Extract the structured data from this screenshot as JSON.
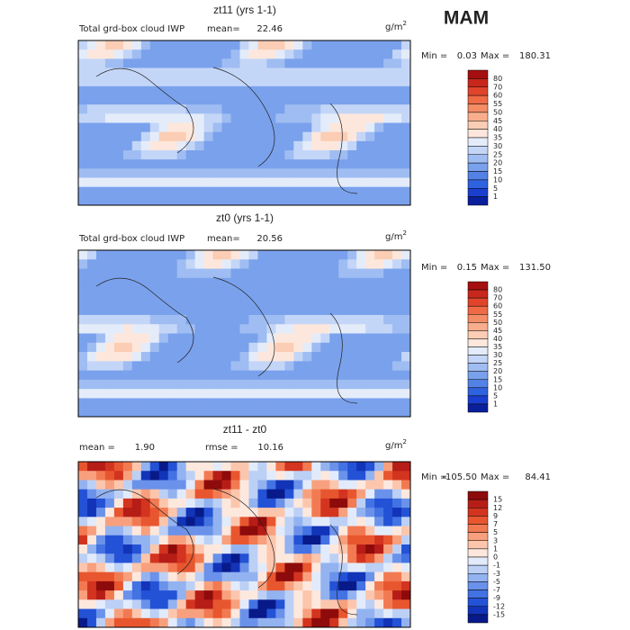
{
  "season": "MAM",
  "panels": [
    {
      "title": "zt11 (yrs 1-1)",
      "left_label": "Total grd-box cloud IWP",
      "stat1_label": "mean=",
      "stat1_value": "22.46",
      "units": "g/m",
      "units_sup": "2",
      "min_label": "Min =",
      "min": "0.03",
      "max_label": "Max =",
      "max": "180.31",
      "colorbar": {
        "labels": [
          80,
          70,
          60,
          55,
          50,
          45,
          40,
          35,
          30,
          25,
          20,
          15,
          10,
          5,
          1
        ],
        "colors": [
          "#a50f0f",
          "#c8281c",
          "#e0452c",
          "#ef6a45",
          "#f48c66",
          "#f8ae8c",
          "#fbcdb4",
          "#fde7dc",
          "#e4ecfa",
          "#c4d6f7",
          "#9fbdf2",
          "#7aa1ec",
          "#5382e6",
          "#2f62df",
          "#1a3fcf",
          "#0a1f9c"
        ]
      }
    },
    {
      "title": "zt0 (yrs 1-1)",
      "left_label": "Total grd-box cloud IWP",
      "stat1_label": "mean=",
      "stat1_value": "20.56",
      "units": "g/m",
      "units_sup": "2",
      "min_label": "Min =",
      "min": "0.15",
      "max_label": "Max =",
      "max": "131.50",
      "colorbar": {
        "labels": [
          80,
          70,
          60,
          55,
          50,
          45,
          40,
          35,
          30,
          25,
          20,
          15,
          10,
          5,
          1
        ],
        "colors": [
          "#a50f0f",
          "#c8281c",
          "#e0452c",
          "#ef6a45",
          "#f48c66",
          "#f8ae8c",
          "#fbcdb4",
          "#fde7dc",
          "#e4ecfa",
          "#c4d6f7",
          "#9fbdf2",
          "#7aa1ec",
          "#5382e6",
          "#2f62df",
          "#1a3fcf",
          "#0a1f9c"
        ]
      }
    },
    {
      "title": "zt11 - zt0",
      "stat1_label": "mean =",
      "stat1_value": "1.90",
      "stat2_label": "rmse =",
      "stat2_value": "10.16",
      "units": "g/m",
      "units_sup": "2",
      "min_label": "Min =",
      "min": "-105.50",
      "max_label": "Max =",
      "max": "84.41",
      "colorbar": {
        "labels": [
          15,
          12,
          9,
          7,
          5,
          3,
          1,
          0,
          -1,
          -3,
          -5,
          -7,
          -9,
          -12,
          -15
        ],
        "colors": [
          "#8e0b0b",
          "#b71d17",
          "#d3341f",
          "#e8562f",
          "#f27a52",
          "#f8a07e",
          "#fcc6ad",
          "#fde8de",
          "#e2ebfb",
          "#bcd0f6",
          "#93b2f0",
          "#6a92ea",
          "#4372e3",
          "#2452d6",
          "#1234b8",
          "#081a8a"
        ]
      }
    }
  ]
}
